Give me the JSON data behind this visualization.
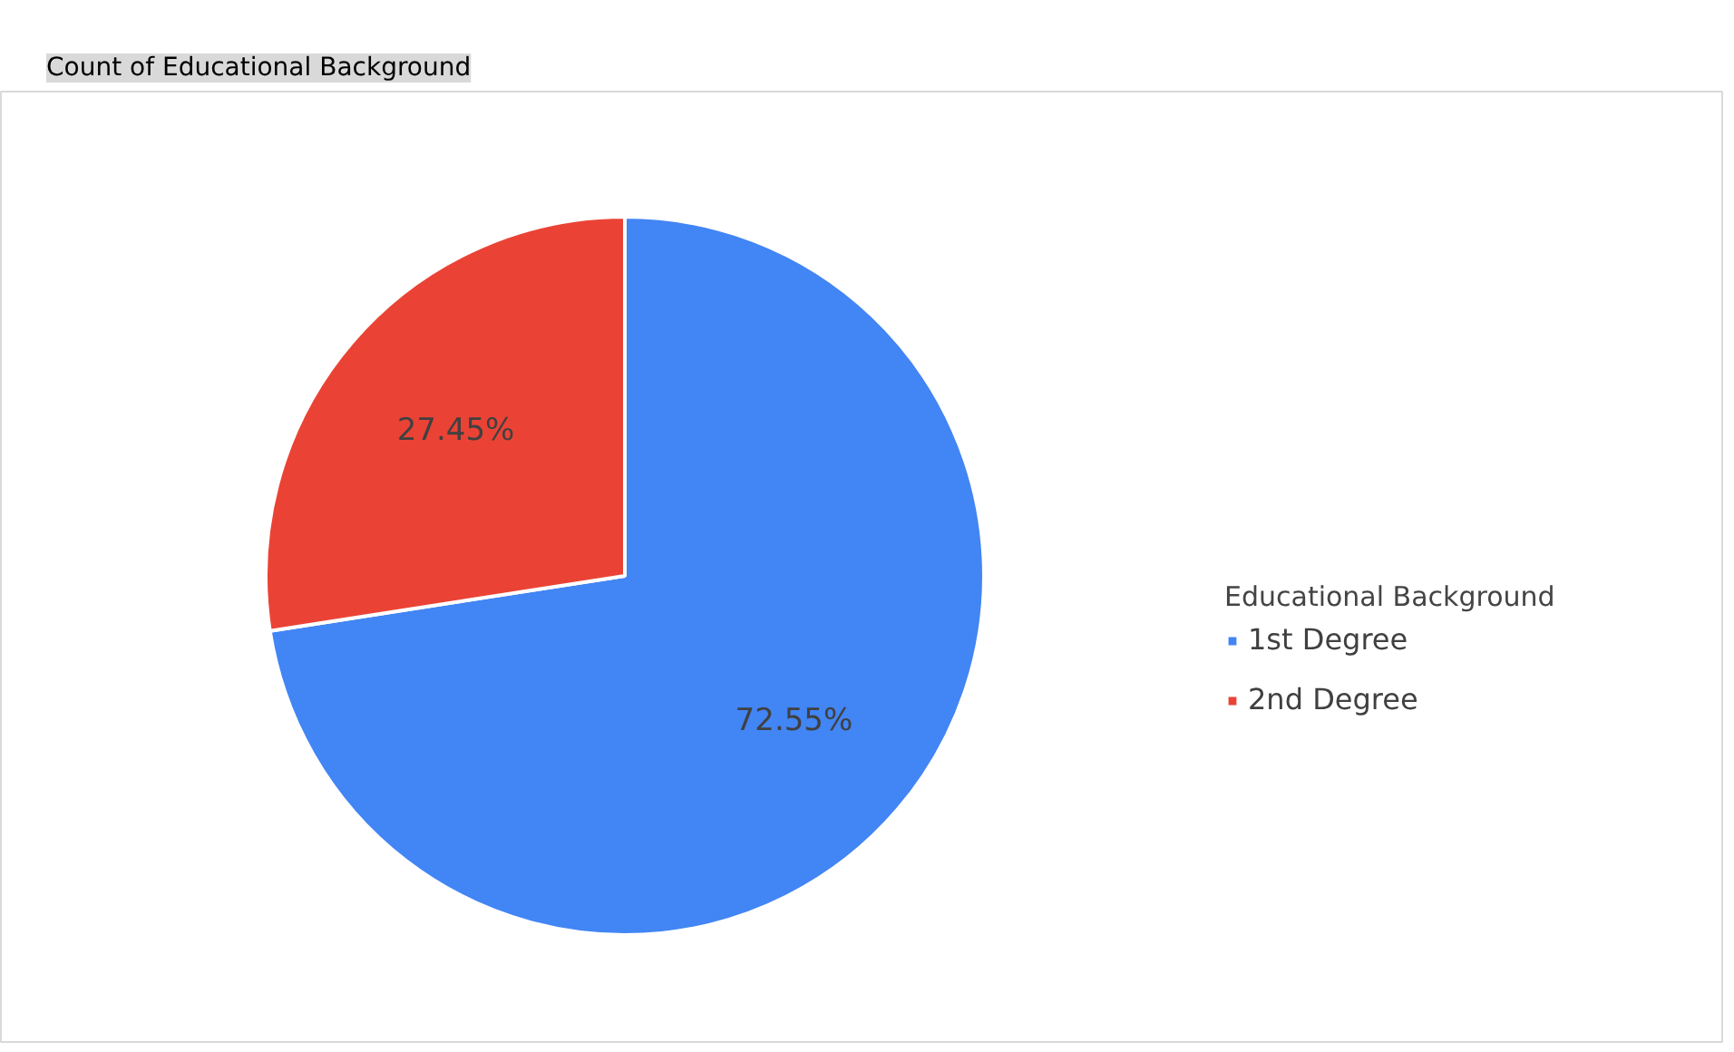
{
  "chart_data": {
    "type": "pie",
    "title": "Count of Educational Background",
    "legend_title": "Educational Background",
    "categories": [
      "1st Degree",
      "2nd Degree"
    ],
    "values": [
      72.55,
      27.45
    ],
    "colors": [
      "#4285f4",
      "#ea4335"
    ],
    "value_labels": [
      "72.55%",
      "27.45%"
    ],
    "legend": "right"
  }
}
